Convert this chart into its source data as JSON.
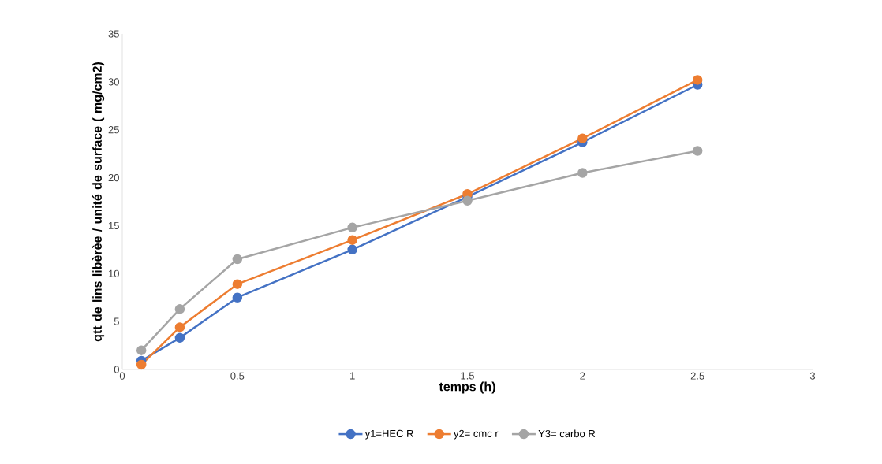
{
  "chart_data": {
    "type": "line",
    "xlabel": "temps (h)",
    "ylabel": "qtt de lins libèrèe / unité de surface ( mg/cm2)",
    "x": [
      0.083,
      0.25,
      0.5,
      1,
      1.5,
      2,
      2.5
    ],
    "series": [
      {
        "name": "y1=HEC R",
        "color": "#4472c4",
        "values": [
          0.9,
          3.3,
          7.5,
          12.5,
          18.0,
          23.7,
          29.7
        ]
      },
      {
        "name": "y2= cmc r",
        "color": "#ed7d31",
        "values": [
          0.5,
          4.4,
          8.9,
          13.5,
          18.3,
          24.1,
          30.2
        ]
      },
      {
        "name": "Y3= carbo R",
        "color": "#a5a5a5",
        "values": [
          2.0,
          6.3,
          11.5,
          14.8,
          17.6,
          20.5,
          22.8
        ]
      }
    ],
    "xlim": [
      0,
      3
    ],
    "xticks": [
      0,
      0.5,
      1,
      1.5,
      2,
      2.5,
      3
    ],
    "ylim": [
      0,
      35
    ],
    "yticks": [
      0,
      5,
      10,
      15,
      20,
      25,
      30,
      35
    ],
    "marker": "circle",
    "legend": "bottom",
    "grid": false
  }
}
